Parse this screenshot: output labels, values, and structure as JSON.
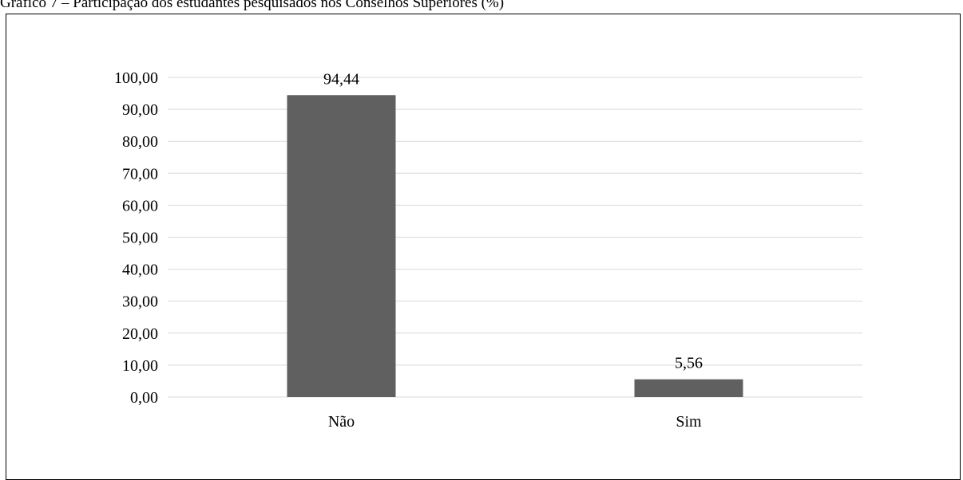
{
  "caption": "Gráfico 7 – Participação dos estudantes pesquisados nos Conselhos Superiores (%)",
  "chart_data": {
    "type": "bar",
    "categories": [
      "Não",
      "Sim"
    ],
    "values": [
      94.44,
      5.56
    ],
    "data_labels": [
      "94,44",
      "5,56"
    ],
    "ylim": [
      0,
      100
    ],
    "yticks": [
      0,
      10,
      20,
      30,
      40,
      50,
      60,
      70,
      80,
      90,
      100
    ],
    "ytick_labels": [
      "0,00",
      "10,00",
      "20,00",
      "30,00",
      "40,00",
      "50,00",
      "60,00",
      "70,00",
      "80,00",
      "90,00",
      "100,00"
    ],
    "grid": true,
    "legend": "none",
    "bar_color": "#606060",
    "grid_color": "#d9d9d9"
  }
}
